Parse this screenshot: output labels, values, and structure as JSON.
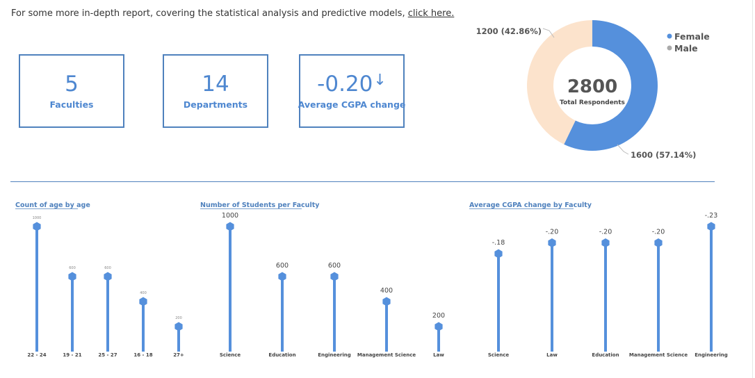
{
  "header": {
    "text": "For some more in-depth report, covering the statistical analysis and predictive models,",
    "link_text": "click here."
  },
  "kpis": [
    {
      "value": "5",
      "label": "Faculties"
    },
    {
      "value": "14",
      "label": "Departments"
    },
    {
      "value": "-0.20",
      "label": "Average CGPA change",
      "indicator": "down-arrow-icon"
    }
  ],
  "colors": {
    "accent": "#4f81bd",
    "series": "#5590dc",
    "female": "#5590dc",
    "male": "#fce3cc",
    "legend_male_dot": "#aaaaaa"
  },
  "chart_data": [
    {
      "type": "pie",
      "subtype": "donut",
      "center_value": "2800",
      "center_label": "Total Respondents",
      "series": [
        {
          "name": "Female",
          "value": 1600,
          "label": "1600 (57.14%)"
        },
        {
          "name": "Male",
          "value": 1200,
          "label": "1200 (42.86%)"
        }
      ],
      "legend": {
        "position": "top-right",
        "items": [
          "Female",
          "Male"
        ]
      }
    },
    {
      "type": "bar",
      "subtype": "lollipop",
      "title": "Count of age by age",
      "categories": [
        "22 - 24",
        "19 - 21",
        "25 - 27",
        "16 - 18",
        "27+"
      ],
      "values": [
        1000,
        600,
        600,
        400,
        200
      ],
      "labels": [
        "1000",
        "600",
        "600",
        "400",
        "200"
      ],
      "ylim": [
        0,
        1000
      ]
    },
    {
      "type": "bar",
      "subtype": "lollipop",
      "title": "Number of Students per Faculty",
      "categories": [
        "Science",
        "Education",
        "Engineering",
        "Management Science",
        "Law"
      ],
      "values": [
        1000,
        600,
        600,
        400,
        200
      ],
      "labels": [
        "1000",
        "600",
        "600",
        "400",
        "200"
      ],
      "ylim": [
        0,
        1000
      ]
    },
    {
      "type": "bar",
      "subtype": "lollipop",
      "title": "Average CGPA change by Faculty",
      "categories": [
        "Science",
        "Law",
        "Education",
        "Management Science",
        "Engineering"
      ],
      "values": [
        -0.18,
        -0.2,
        -0.2,
        -0.2,
        -0.23
      ],
      "labels": [
        "-.18",
        "-.20",
        "-.20",
        "-.20",
        "-.23"
      ],
      "ylim": [
        0,
        -0.23
      ]
    }
  ]
}
